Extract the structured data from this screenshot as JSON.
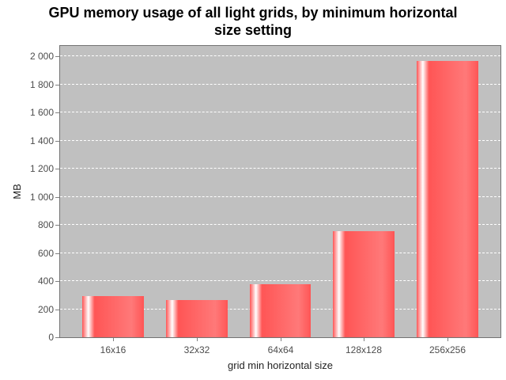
{
  "title_lines": [
    "GPU memory usage of all light grids, by minimum horizontal",
    "size setting"
  ],
  "chart_data": {
    "type": "bar",
    "title": "GPU memory usage of all light grids, by minimum horizontal size setting",
    "categories": [
      "16x16",
      "32x32",
      "64x64",
      "128x128",
      "256x256"
    ],
    "values": [
      294,
      267,
      379,
      753,
      1968
    ],
    "xlabel": "grid min horizontal size",
    "ylabel": "MB",
    "ylim": [
      0,
      2075
    ],
    "yticks": [
      0,
      200,
      400,
      600,
      800,
      1000,
      1200,
      1400,
      1600,
      1800,
      2000
    ],
    "ytick_labels": [
      "0",
      "200",
      "400",
      "600",
      "800",
      "1 000",
      "1 200",
      "1 400",
      "1 600",
      "1 800",
      "2 000"
    ],
    "grid": "horizontal-dashed",
    "legend": "none"
  },
  "colors": {
    "background": "#ffffff",
    "title": "#000000",
    "plot_bg": "#c0c0c0",
    "plot_border": "#737373",
    "gridline": "#ffffff",
    "tick": "#808080",
    "tick_label": "#4d4d4d",
    "axis_label": "#222222",
    "bar_base": "#ff5555",
    "bar_bright": "#ff7979",
    "bar_highlight": "#ffffff"
  }
}
